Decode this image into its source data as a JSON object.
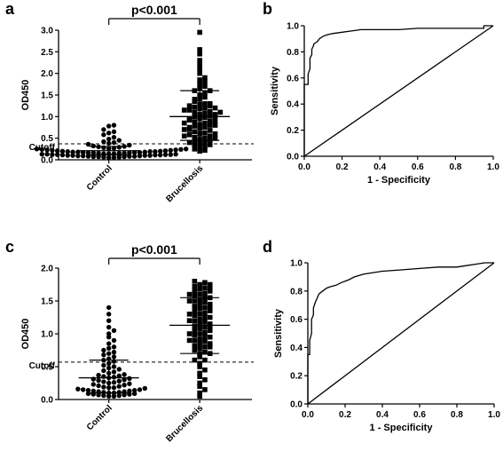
{
  "chart_data": [
    {
      "panel": "a",
      "type": "scatter",
      "ylabel": "OD450",
      "ylim": [
        0,
        3.0
      ],
      "yticks": [
        "0.0",
        "0.5",
        "1.0",
        "1.5",
        "2.0",
        "2.5",
        "3.0"
      ],
      "categories": [
        "Control",
        "Brucellosis"
      ],
      "cutoff": {
        "label": "Cutoff",
        "value": 0.37
      },
      "comparison": "p<0.001",
      "groups": [
        {
          "name": "Control",
          "marker": "circle",
          "mean": 0.21,
          "sd_low": 0.11,
          "sd_high": 0.31,
          "values": [
            0.05,
            0.05,
            0.06,
            0.06,
            0.07,
            0.07,
            0.07,
            0.08,
            0.08,
            0.08,
            0.09,
            0.09,
            0.09,
            0.1,
            0.1,
            0.1,
            0.1,
            0.11,
            0.11,
            0.11,
            0.12,
            0.12,
            0.12,
            0.12,
            0.13,
            0.13,
            0.13,
            0.14,
            0.14,
            0.14,
            0.15,
            0.15,
            0.15,
            0.16,
            0.16,
            0.16,
            0.17,
            0.17,
            0.17,
            0.18,
            0.18,
            0.18,
            0.19,
            0.19,
            0.19,
            0.2,
            0.2,
            0.21,
            0.21,
            0.22,
            0.22,
            0.23,
            0.23,
            0.24,
            0.24,
            0.25,
            0.25,
            0.26,
            0.27,
            0.28,
            0.29,
            0.3,
            0.31,
            0.32,
            0.34,
            0.36,
            0.38,
            0.4,
            0.42,
            0.45,
            0.48,
            0.52,
            0.58,
            0.62,
            0.65,
            0.7,
            0.78,
            0.8
          ]
        },
        {
          "name": "Brucellosis",
          "marker": "square",
          "mean": 1.0,
          "sd_low": 0.45,
          "sd_high": 1.6,
          "values": [
            0.2,
            0.22,
            0.25,
            0.28,
            0.3,
            0.32,
            0.35,
            0.38,
            0.4,
            0.42,
            0.45,
            0.48,
            0.5,
            0.52,
            0.55,
            0.58,
            0.6,
            0.62,
            0.65,
            0.68,
            0.7,
            0.72,
            0.75,
            0.78,
            0.8,
            0.82,
            0.85,
            0.88,
            0.9,
            0.92,
            0.95,
            0.98,
            1.0,
            1.02,
            1.05,
            1.08,
            1.1,
            1.12,
            1.15,
            1.18,
            1.2,
            1.22,
            1.25,
            1.28,
            1.3,
            1.35,
            1.4,
            1.45,
            1.5,
            1.55,
            1.6,
            1.65,
            1.7,
            1.75,
            1.8,
            1.85,
            1.9,
            2.0,
            2.1,
            2.2,
            2.3,
            2.45,
            2.55,
            2.95,
            0.6,
            0.75,
            0.9,
            1.05,
            1.15,
            1.3,
            0.5,
            0.7,
            0.85,
            0.95,
            1.1,
            1.25,
            1.4,
            1.6,
            0.4,
            0.55,
            0.8,
            1.0,
            1.2
          ]
        }
      ]
    },
    {
      "panel": "b",
      "type": "line",
      "xlabel": "1 - Specificity",
      "ylabel": "Sensitivity",
      "xlim": [
        0,
        1.0
      ],
      "ylim": [
        0,
        1.0
      ],
      "xticks": [
        "0.0",
        "0.2",
        "0.4",
        "0.6",
        "0.8",
        "1.0"
      ],
      "yticks": [
        "0.0",
        "0.2",
        "0.4",
        "0.6",
        "0.8",
        "1.0"
      ],
      "series": [
        {
          "x": [
            0,
            0,
            0.02,
            0.02,
            0.03,
            0.03,
            0.04,
            0.04,
            0.05,
            0.05,
            0.06,
            0.07,
            0.08,
            0.1,
            0.12,
            0.15,
            0.2,
            0.25,
            0.3,
            0.4,
            0.5,
            0.6,
            0.7,
            0.8,
            0.9,
            0.95,
            0.95,
            1.0
          ],
          "y": [
            0,
            0.55,
            0.55,
            0.63,
            0.67,
            0.75,
            0.78,
            0.82,
            0.85,
            0.86,
            0.87,
            0.88,
            0.9,
            0.92,
            0.93,
            0.94,
            0.95,
            0.96,
            0.97,
            0.97,
            0.97,
            0.98,
            0.98,
            0.98,
            0.98,
            0.98,
            1.0,
            1.0
          ]
        },
        {
          "x": [
            0,
            1
          ],
          "y": [
            0,
            1
          ]
        }
      ]
    },
    {
      "panel": "c",
      "type": "scatter",
      "ylabel": "OD450",
      "ylim": [
        0,
        2.0
      ],
      "yticks": [
        "0.0",
        "0.5",
        "1.0",
        "1.5",
        "2.0"
      ],
      "categories": [
        "Control",
        "Brucellosis"
      ],
      "cutoff": {
        "label": "Cutoff",
        "value": 0.57
      },
      "comparison": "p<0.001",
      "groups": [
        {
          "name": "Control",
          "marker": "circle",
          "mean": 0.33,
          "sd_low": 0.1,
          "sd_high": 0.6,
          "values": [
            0.05,
            0.05,
            0.06,
            0.06,
            0.07,
            0.07,
            0.08,
            0.08,
            0.09,
            0.09,
            0.1,
            0.1,
            0.11,
            0.11,
            0.12,
            0.12,
            0.13,
            0.13,
            0.14,
            0.14,
            0.15,
            0.15,
            0.16,
            0.17,
            0.18,
            0.18,
            0.19,
            0.2,
            0.21,
            0.22,
            0.23,
            0.24,
            0.25,
            0.26,
            0.27,
            0.28,
            0.29,
            0.3,
            0.31,
            0.32,
            0.33,
            0.34,
            0.35,
            0.36,
            0.37,
            0.38,
            0.4,
            0.42,
            0.44,
            0.46,
            0.48,
            0.5,
            0.52,
            0.55,
            0.58,
            0.6,
            0.62,
            0.65,
            0.68,
            0.7,
            0.72,
            0.75,
            0.78,
            0.8,
            0.85,
            0.9,
            0.95,
            1.0,
            1.05,
            1.1,
            1.2,
            1.3,
            1.4
          ]
        },
        {
          "name": "Brucellosis",
          "marker": "square",
          "mean": 1.13,
          "sd_low": 0.7,
          "sd_high": 1.55,
          "values": [
            0.05,
            0.1,
            0.15,
            0.2,
            0.25,
            0.3,
            0.35,
            0.4,
            0.45,
            0.5,
            0.55,
            0.6,
            0.65,
            0.7,
            0.72,
            0.75,
            0.78,
            0.8,
            0.82,
            0.85,
            0.88,
            0.9,
            0.92,
            0.95,
            0.98,
            1.0,
            1.02,
            1.05,
            1.08,
            1.1,
            1.12,
            1.15,
            1.18,
            1.2,
            1.22,
            1.25,
            1.28,
            1.3,
            1.32,
            1.35,
            1.38,
            1.4,
            1.42,
            1.45,
            1.48,
            1.5,
            1.52,
            1.55,
            1.58,
            1.6,
            1.62,
            1.65,
            1.68,
            1.7,
            1.72,
            1.75,
            1.78,
            1.8,
            0.6,
            0.7,
            0.85,
            0.95,
            1.05,
            1.15,
            1.25,
            1.35,
            1.45,
            1.55,
            1.65,
            1.75,
            1.3,
            1.4,
            1.5,
            1.6,
            1.7,
            1.2,
            1.1,
            1.0,
            0.9,
            0.8
          ]
        }
      ]
    },
    {
      "panel": "d",
      "type": "line",
      "xlabel": "1 - Specificity",
      "ylabel": "Sensitivity",
      "xlim": [
        0,
        1.0
      ],
      "ylim": [
        0,
        1.0
      ],
      "xticks": [
        "0.0",
        "0.2",
        "0.4",
        "0.6",
        "0.8",
        "1.0"
      ],
      "yticks": [
        "0.0",
        "0.2",
        "0.4",
        "0.6",
        "0.8",
        "1.0"
      ],
      "series": [
        {
          "x": [
            0,
            0,
            0.01,
            0.01,
            0.02,
            0.02,
            0.03,
            0.03,
            0.04,
            0.05,
            0.06,
            0.08,
            0.1,
            0.12,
            0.15,
            0.18,
            0.22,
            0.25,
            0.3,
            0.35,
            0.4,
            0.5,
            0.6,
            0.7,
            0.8,
            0.85,
            0.9,
            0.95,
            1.0
          ],
          "y": [
            0,
            0.35,
            0.35,
            0.45,
            0.5,
            0.6,
            0.63,
            0.68,
            0.72,
            0.75,
            0.78,
            0.8,
            0.82,
            0.83,
            0.84,
            0.86,
            0.88,
            0.9,
            0.92,
            0.93,
            0.94,
            0.95,
            0.96,
            0.97,
            0.97,
            0.98,
            0.99,
            1.0,
            1.0
          ]
        },
        {
          "x": [
            0,
            1
          ],
          "y": [
            0,
            1
          ]
        }
      ]
    }
  ]
}
